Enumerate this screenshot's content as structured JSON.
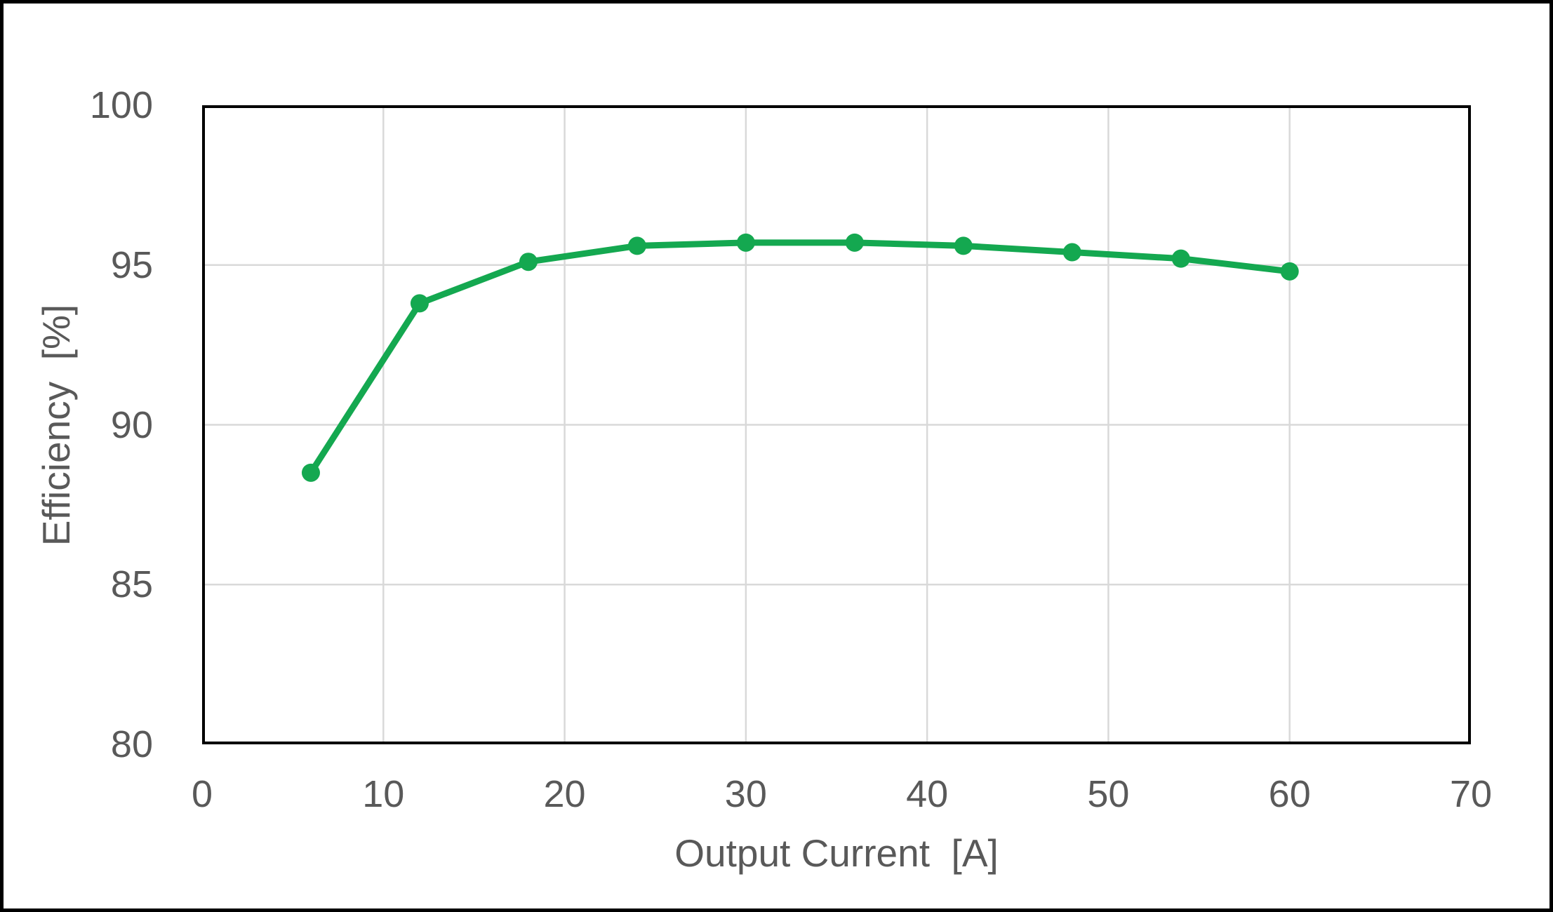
{
  "chart_data": {
    "type": "line",
    "title": "",
    "xlabel": "Output Current  [A]",
    "ylabel": "Efficiency  [%]",
    "x": [
      6,
      12,
      18,
      24,
      30,
      36,
      42,
      48,
      54,
      60
    ],
    "series": [
      {
        "name": "Efficiency",
        "color": "#14a850",
        "marker": "circle",
        "values": [
          88.5,
          93.8,
          95.1,
          95.6,
          95.7,
          95.7,
          95.6,
          95.4,
          95.2,
          94.8
        ]
      }
    ],
    "xlim": [
      0,
      70
    ],
    "ylim": [
      80,
      100
    ],
    "x_ticks": [
      0,
      10,
      20,
      30,
      40,
      50,
      60,
      70
    ],
    "y_ticks": [
      100,
      95,
      90,
      85,
      80
    ],
    "grid": true,
    "legend_position": "none",
    "colors": {
      "gridline": "#d9d9d9",
      "tick_label": "#595959",
      "axis_title": "#595959",
      "plot_border": "#000000",
      "figure_border": "#000000",
      "background": "#ffffff"
    }
  }
}
